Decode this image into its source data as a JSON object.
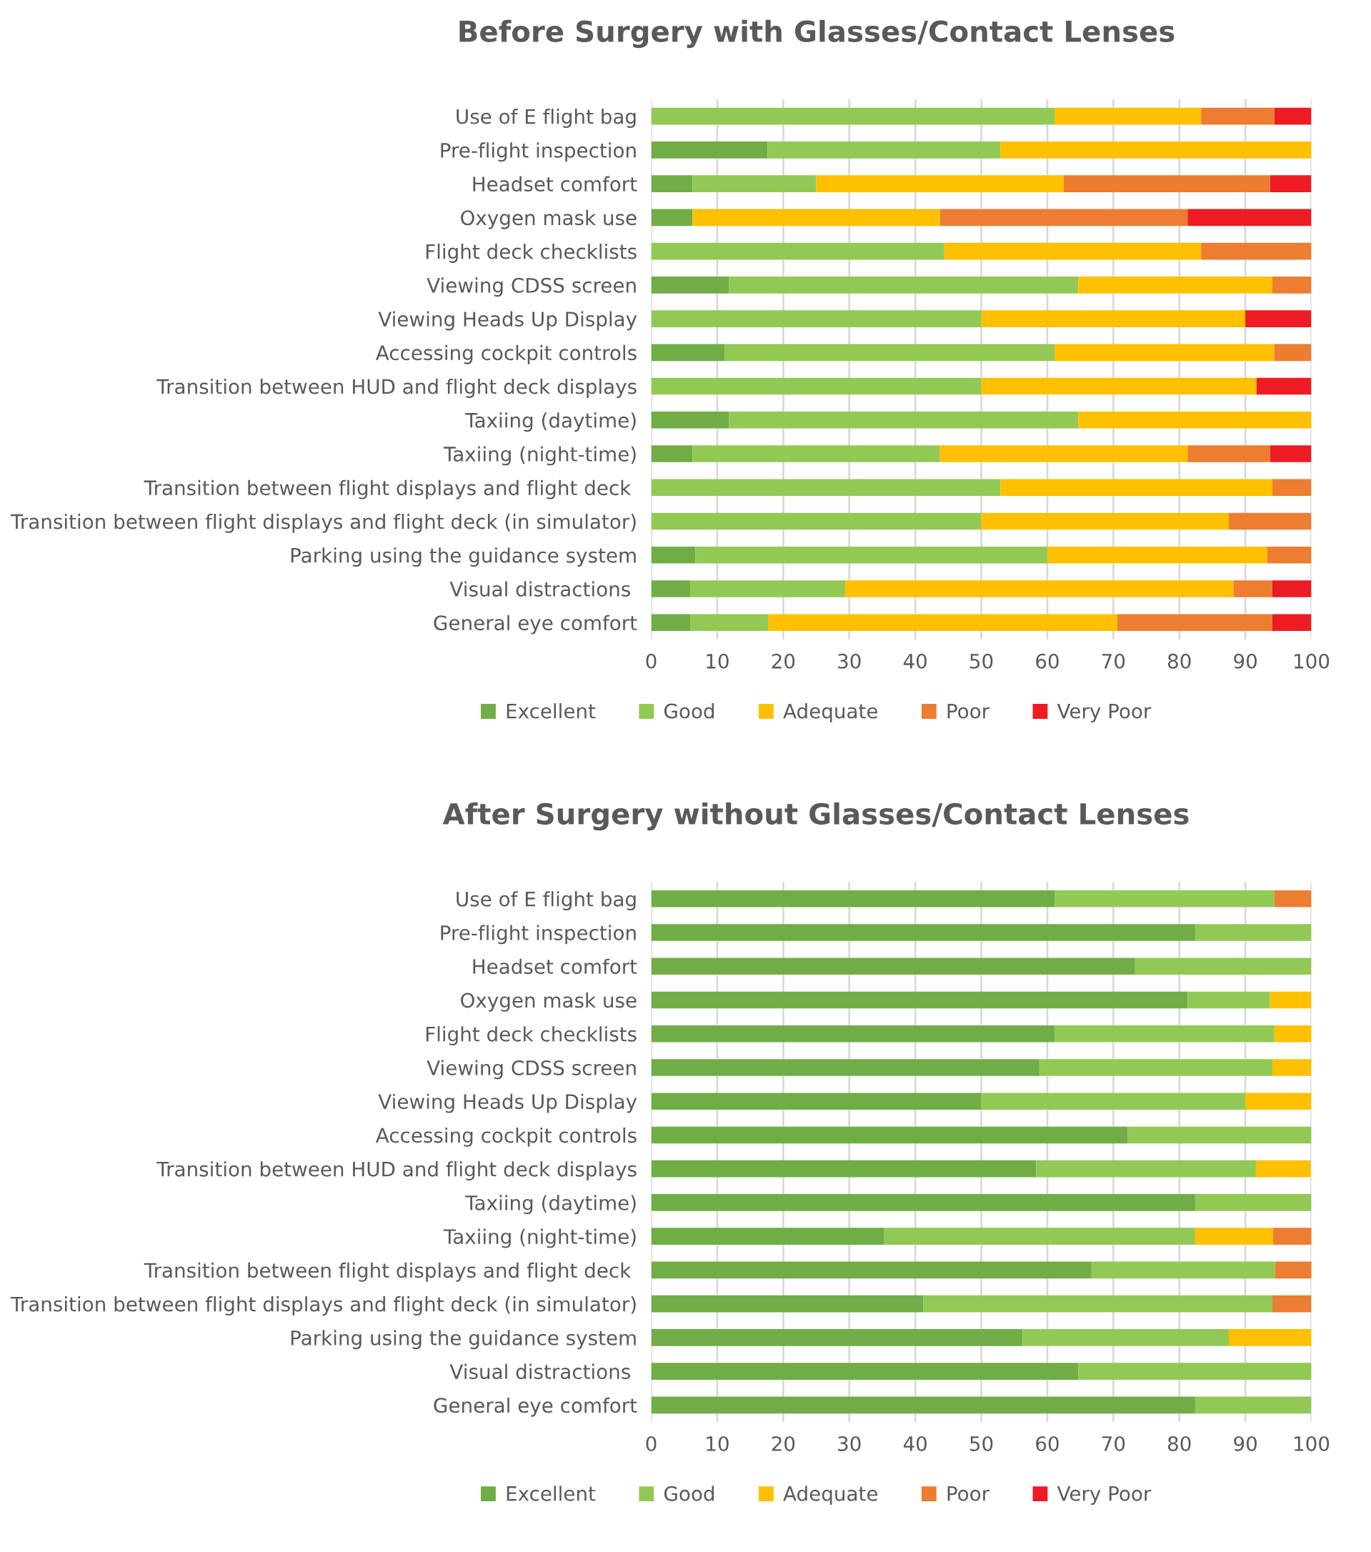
{
  "chart_data": [
    {
      "type": "bar",
      "orientation": "horizontal",
      "stacked": true,
      "title": "Before Surgery with Glasses/Contact Lenses",
      "categories": [
        "Use of E flight bag",
        "Pre-flight inspection",
        "Headset comfort",
        "Oxygen mask use",
        "Flight deck checklists",
        "Viewing CDSS screen",
        "Viewing Heads Up Display",
        "Accessing cockpit controls",
        "Transition between HUD and flight deck displays",
        "Taxiing (daytime)",
        "Taxiing (night-time)",
        "Transition between flight displays and flight deck ",
        "Transition between flight displays and flight deck (in simulator)",
        "Parking using the guidance system",
        "Visual distractions ",
        "General eye comfort"
      ],
      "series": [
        {
          "name": "Excellent",
          "color": "#70ad47",
          "values": [
            0,
            17.6,
            6.25,
            6.25,
            0,
            11.8,
            0,
            11.1,
            0,
            11.8,
            6.25,
            0,
            0,
            6.7,
            5.9,
            5.9
          ]
        },
        {
          "name": "Good",
          "color": "#92c955",
          "values": [
            61.1,
            35.3,
            18.75,
            0,
            44.4,
            52.9,
            50,
            50,
            50,
            52.9,
            37.5,
            52.9,
            50,
            53.3,
            23.5,
            11.8
          ]
        },
        {
          "name": "Adequate",
          "color": "#ffc000",
          "values": [
            22.2,
            47.1,
            37.5,
            37.5,
            38.9,
            29.4,
            40,
            33.3,
            41.7,
            35.3,
            37.5,
            41.2,
            37.5,
            33.3,
            58.8,
            52.9
          ]
        },
        {
          "name": "Poor",
          "color": "#ed7d31",
          "values": [
            11.1,
            0,
            31.25,
            37.5,
            16.7,
            5.9,
            0,
            5.6,
            0,
            0,
            12.5,
            5.9,
            12.5,
            6.7,
            5.9,
            23.5
          ]
        },
        {
          "name": "Very Poor",
          "color": "#ed1c24",
          "values": [
            5.6,
            0,
            6.25,
            18.75,
            0,
            0,
            10,
            0,
            8.3,
            0,
            6.25,
            0,
            0,
            0,
            5.9,
            5.9
          ]
        }
      ],
      "xlim": [
        0,
        100
      ],
      "xticks": [
        0,
        10,
        20,
        30,
        40,
        50,
        60,
        70,
        80,
        90,
        100
      ],
      "grid": "x",
      "legend": "bottom"
    },
    {
      "type": "bar",
      "orientation": "horizontal",
      "stacked": true,
      "title": "After Surgery without Glasses/Contact Lenses",
      "categories": [
        "Use of E flight bag",
        "Pre-flight inspection",
        "Headset comfort",
        "Oxygen mask use",
        "Flight deck checklists",
        "Viewing CDSS screen",
        "Viewing Heads Up Display",
        "Accessing cockpit controls",
        "Transition between HUD and flight deck displays",
        "Taxiing (daytime)",
        "Taxiing (night-time)",
        "Transition between flight displays and flight deck ",
        "Transition between flight displays and flight deck (in simulator)",
        "Parking using the guidance system",
        "Visual distractions ",
        "General eye comfort"
      ],
      "series": [
        {
          "name": "Excellent",
          "color": "#70ad47",
          "values": [
            61.1,
            82.4,
            73.3,
            81.25,
            61.1,
            58.8,
            50,
            72.2,
            58.3,
            82.4,
            35.3,
            66.7,
            41.2,
            56.25,
            64.7,
            82.4
          ]
        },
        {
          "name": "Good",
          "color": "#92c955",
          "values": [
            33.3,
            17.6,
            26.7,
            12.5,
            33.3,
            35.3,
            40,
            27.8,
            33.3,
            17.6,
            47.1,
            27.8,
            52.9,
            31.25,
            35.3,
            17.6
          ]
        },
        {
          "name": "Adequate",
          "color": "#ffc000",
          "values": [
            0,
            0,
            0,
            6.25,
            5.6,
            5.9,
            10,
            0,
            8.3,
            0,
            11.8,
            0,
            0,
            12.5,
            0,
            0
          ]
        },
        {
          "name": "Poor",
          "color": "#ed7d31",
          "values": [
            5.6,
            0,
            0,
            0,
            0,
            0,
            0,
            0,
            0,
            0,
            5.9,
            5.6,
            5.9,
            0,
            0,
            0
          ]
        },
        {
          "name": "Very Poor",
          "color": "#ed1c24",
          "values": [
            0,
            0,
            0,
            0,
            0,
            0,
            0,
            0,
            0,
            0,
            0,
            0,
            0,
            0,
            0,
            0
          ]
        }
      ],
      "xlim": [
        0,
        100
      ],
      "xticks": [
        0,
        10,
        20,
        30,
        40,
        50,
        60,
        70,
        80,
        90,
        100
      ],
      "grid": "x",
      "legend": "bottom"
    }
  ]
}
